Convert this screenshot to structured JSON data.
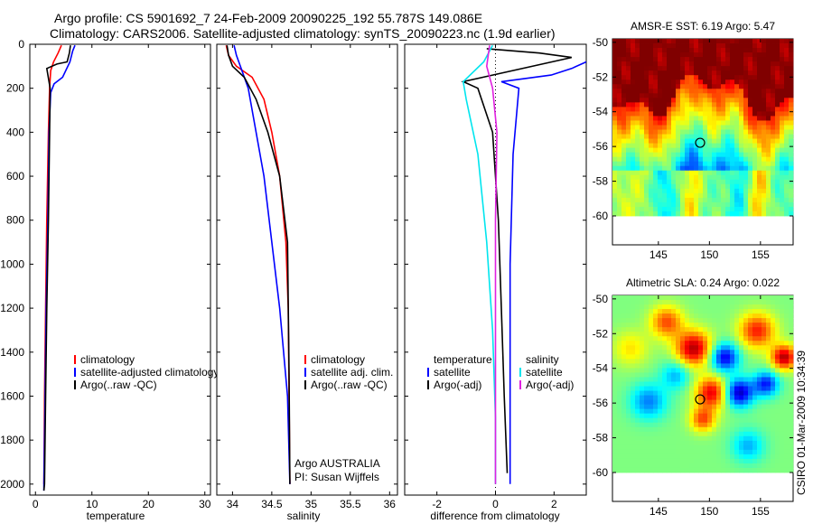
{
  "figure": {
    "title_line1": "Argo profile: CS 5901692_7 24-Feb-2009 20090225_192 55.787S 149.086E",
    "title_line2": "Climatology: CARS2006. Satellite-adjusted climatology: synTS_20090223.nc (1.9d earlier)",
    "stamp": "CSIRO 01-Mar-2009 10:34:39"
  },
  "colors": {
    "climatology": "#ff0000",
    "satellite": "#0000ff",
    "argo": "#000000",
    "cyan": "#00e5ee",
    "magenta": "#e020e0"
  },
  "chart_data": [
    {
      "type": "line",
      "name": "temperature",
      "xlabel": "temperature",
      "ylabel": "",
      "xlim": [
        -1,
        31
      ],
      "ylim": [
        2050,
        0
      ],
      "xticks": [
        0,
        10,
        20,
        30
      ],
      "yticks": [
        0,
        200,
        400,
        600,
        800,
        1000,
        1200,
        1400,
        1600,
        1800,
        2000
      ],
      "legend": [
        "climatology",
        "satellite-adjusted climatology",
        "Argo(..raw -QC)"
      ],
      "series": [
        {
          "name": "climatology",
          "color": "red",
          "x": [
            4.6,
            4.0,
            3.2,
            2.7,
            2.5,
            2.3,
            2.0,
            1.8,
            1.6,
            1.5
          ],
          "y": [
            5,
            40,
            80,
            120,
            200,
            400,
            800,
            1200,
            1600,
            2000
          ]
        },
        {
          "name": "satellite-adjusted climatology",
          "color": "blue",
          "x": [
            7.0,
            6.6,
            6.1,
            4.8,
            3.3,
            2.7,
            2.4,
            2.2,
            1.9,
            1.7,
            1.5,
            1.5
          ],
          "y": [
            5,
            30,
            80,
            150,
            180,
            220,
            400,
            800,
            1200,
            1600,
            2000,
            2030
          ]
        },
        {
          "name": "Argo(..raw -QC)",
          "color": "black",
          "x": [
            6.2,
            6.0,
            5.6,
            3.8,
            2.0,
            2.6,
            2.5,
            2.3,
            2.0,
            1.8,
            1.6,
            1.5
          ],
          "y": [
            5,
            40,
            80,
            90,
            110,
            200,
            400,
            800,
            1200,
            1600,
            2000,
            2030
          ]
        }
      ]
    },
    {
      "type": "line",
      "name": "salinity",
      "xlabel": "salinity",
      "xlim": [
        33.8,
        36.1
      ],
      "ylim": [
        2050,
        0
      ],
      "xticks": [
        34,
        34.5,
        35,
        35.5,
        36
      ],
      "legend": [
        "climatology",
        "satellite adj. clim.",
        "Argo(..raw -QC)"
      ],
      "annotation": [
        "Argo AUSTRALIA",
        "PI: Susan Wijffels"
      ],
      "series": [
        {
          "name": "climatology",
          "color": "red",
          "x": [
            33.92,
            33.95,
            34.05,
            34.25,
            34.4,
            34.5,
            34.6,
            34.68,
            34.71,
            34.72,
            34.73
          ],
          "y": [
            5,
            50,
            100,
            150,
            250,
            400,
            600,
            900,
            1200,
            1600,
            2000
          ]
        },
        {
          "name": "satellite adj. clim.",
          "color": "blue",
          "x": [
            34.02,
            34.05,
            34.1,
            34.2,
            34.3,
            34.4,
            34.5,
            34.6,
            34.7,
            34.73
          ],
          "y": [
            5,
            50,
            100,
            200,
            400,
            600,
            900,
            1200,
            1600,
            2000
          ]
        },
        {
          "name": "Argo(..raw -QC)",
          "color": "black",
          "x": [
            33.93,
            33.95,
            34.0,
            34.15,
            34.3,
            34.45,
            34.6,
            34.7,
            34.72,
            34.73
          ],
          "y": [
            5,
            50,
            100,
            150,
            250,
            400,
            600,
            900,
            1500,
            2000
          ]
        }
      ]
    },
    {
      "type": "line",
      "name": "difference",
      "xlabel": "difference from climatology",
      "xlim": [
        -3.1,
        3.1
      ],
      "ylim": [
        2050,
        0
      ],
      "xticks": [
        -2,
        0,
        2
      ],
      "legend": {
        "temperature": [
          "temperature",
          "satellite",
          "Argo(-adj)"
        ],
        "salinity": [
          "salinity",
          "satellite",
          "Argo(-adj)"
        ]
      },
      "series": [
        {
          "name": "temperature satellite",
          "color": "blue",
          "x": [
            3.1,
            2.6,
            1.9,
            0.2,
            0.8,
            0.6,
            0.5,
            0.5,
            0.5
          ],
          "y": [
            80,
            110,
            140,
            170,
            200,
            500,
            1000,
            1500,
            2000
          ]
        },
        {
          "name": "temperature Argo(-adj)",
          "color": "black",
          "x": [
            -0.3,
            1.5,
            2.6,
            -1.1,
            -0.6,
            -0.1,
            0.1,
            0.2,
            0.3,
            0.4
          ],
          "y": [
            20,
            40,
            60,
            170,
            200,
            400,
            800,
            1200,
            1600,
            1950
          ]
        },
        {
          "name": "salinity satellite",
          "color": "cyan",
          "x": [
            -0.1,
            -0.4,
            -1.1,
            -1.0,
            -0.6,
            -0.3,
            -0.1,
            0.0,
            0.0
          ],
          "y": [
            5,
            80,
            170,
            250,
            500,
            900,
            1300,
            1700,
            2000
          ]
        },
        {
          "name": "salinity Argo(-adj)",
          "color": "magenta",
          "x": [
            -0.2,
            -0.3,
            -0.1,
            0.05,
            0.0,
            0.0,
            0.0,
            0.0
          ],
          "y": [
            5,
            100,
            200,
            400,
            800,
            1200,
            1600,
            2000
          ]
        }
      ]
    },
    {
      "type": "heatmap",
      "name": "AMSR-E SST",
      "title": "AMSR-E SST: 6.19 Argo: 5.47",
      "xticks": [
        145,
        150,
        155
      ],
      "yticks": [
        -50,
        -52,
        -54,
        -56,
        -58,
        -60
      ],
      "xlim": [
        140.5,
        158.2
      ],
      "ylim": [
        -60,
        -49.8
      ],
      "marker": {
        "lon": 149.086,
        "lat": -55.787
      }
    },
    {
      "type": "heatmap",
      "name": "Altimetric SLA",
      "title": "Altimetric SLA: 0.24 Argo: 0.022",
      "xticks": [
        145,
        150,
        155
      ],
      "yticks": [
        -50,
        -52,
        -54,
        -56,
        -58,
        -60
      ],
      "xlim": [
        140.5,
        158.2
      ],
      "ylim": [
        -60,
        -49.8
      ],
      "marker": {
        "lon": 149.086,
        "lat": -55.787
      }
    }
  ]
}
